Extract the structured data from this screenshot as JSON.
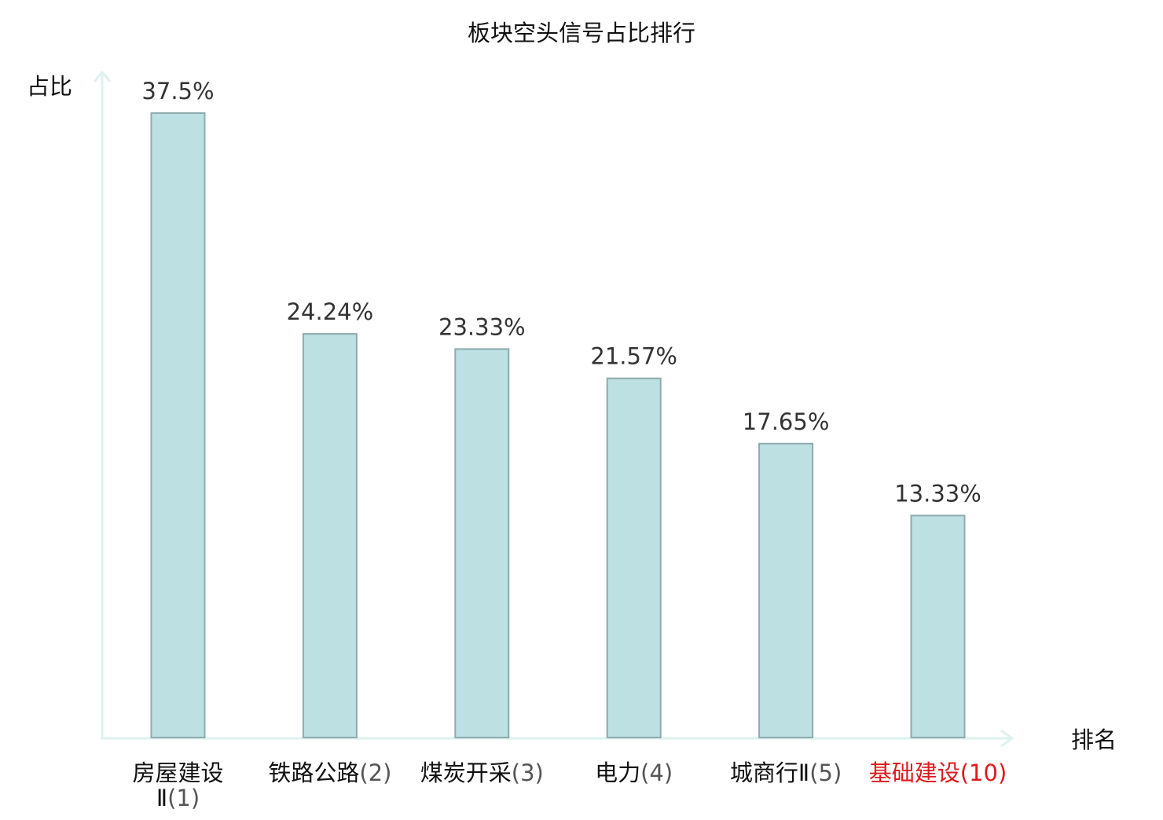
{
  "chart_data": {
    "type": "bar",
    "title": "板块空头信号占比排行",
    "xlabel": "排名",
    "ylabel": "占比",
    "categories": [
      "房屋建设Ⅱ(1)",
      "铁路公路(2)",
      "煤炭开采(3)",
      "电力(4)",
      "城商行Ⅱ(5)",
      "基础建设(10)"
    ],
    "category_parts": [
      {
        "name": "房屋建设Ⅱ",
        "rank": "(1)"
      },
      {
        "name": "铁路公路",
        "rank": "(2)"
      },
      {
        "name": "煤炭开采",
        "rank": "(3)"
      },
      {
        "name": "电力",
        "rank": "(4)"
      },
      {
        "name": "城商行Ⅱ",
        "rank": "(5)"
      },
      {
        "name": "基础建设",
        "rank": "(10)"
      }
    ],
    "values": [
      37.5,
      24.24,
      23.33,
      21.57,
      17.65,
      13.33
    ],
    "value_labels": [
      "37.5%",
      "24.24%",
      "23.33%",
      "21.57%",
      "17.65%",
      "13.33%"
    ],
    "highlighted_category_index": 5,
    "ylim": [
      0,
      37.5
    ],
    "grid": false,
    "legend": "none"
  },
  "colors": {
    "bar_fill": "#bde0e3",
    "bar_stroke": "#8eabad",
    "axis": "#def1ef",
    "text": "#333333",
    "category_text": "#111111",
    "rank_text": "#555555",
    "highlight": "#e0191e"
  }
}
